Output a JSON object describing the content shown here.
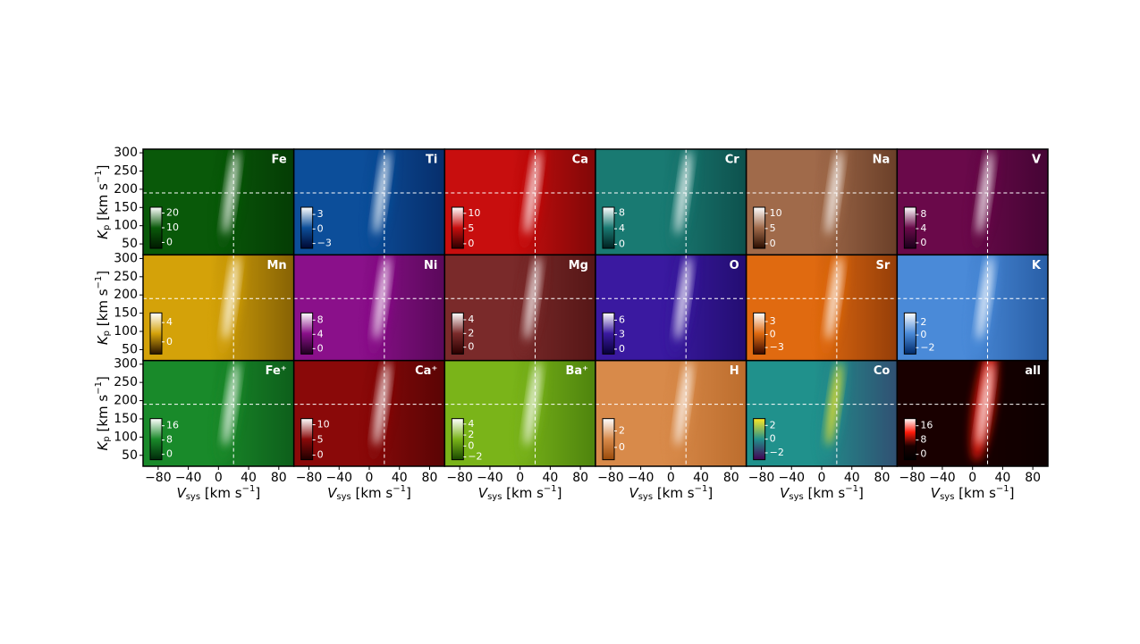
{
  "chart_data": {
    "type": "heatmap_grid",
    "xlim": [
      -100,
      100
    ],
    "ylim": [
      20,
      310
    ],
    "xticks": [
      {
        "value": -80,
        "label": "−80"
      },
      {
        "value": -40,
        "label": "−40"
      },
      0,
      40,
      80
    ],
    "yticks": [
      50,
      100,
      150,
      200,
      250,
      300
    ],
    "xlabel": [
      "V",
      "sys",
      " [km s",
      "−1",
      "]"
    ],
    "ylabel": [
      "K",
      "p",
      " [km s",
      "−1",
      "]"
    ],
    "reference_lines": {
      "x": 20,
      "y": 190
    },
    "panels": [
      {
        "name": "Fe",
        "colors": [
          "#001a00",
          "#0a5a0a",
          "#ffffff"
        ],
        "clim": [
          -4,
          24
        ],
        "cticks": [
          0,
          10,
          20
        ]
      },
      {
        "name": "Ti",
        "colors": [
          "#000833",
          "#0d4f9a",
          "#ffffff"
        ],
        "clim": [
          -4,
          4.5
        ],
        "cticks": [
          {
            "value": -3,
            "label": "−3"
          },
          0,
          3
        ]
      },
      {
        "name": "Ca",
        "colors": [
          "#2a0000",
          "#c80e0e",
          "#ffffff"
        ],
        "clim": [
          -1.5,
          12
        ],
        "cticks": [
          0,
          5,
          10
        ]
      },
      {
        "name": "Cr",
        "colors": [
          "#002020",
          "#1a7a72",
          "#ffffff"
        ],
        "clim": [
          -1,
          9.5
        ],
        "cticks": [
          0,
          4,
          8
        ]
      },
      {
        "name": "Na",
        "colors": [
          "#2a0d00",
          "#a06a4a",
          "#ffffff"
        ],
        "clim": [
          -1.5,
          12
        ],
        "cticks": [
          0,
          5,
          10
        ]
      },
      {
        "name": "V",
        "colors": [
          "#1a001a",
          "#6a0a4a",
          "#ffffff"
        ],
        "clim": [
          -1.5,
          10
        ],
        "cticks": [
          0,
          4,
          8
        ]
      },
      {
        "name": "Mn",
        "colors": [
          "#2a1500",
          "#d4a20a",
          "#ffffff"
        ],
        "clim": [
          -2.5,
          6
        ],
        "cticks": [
          0,
          4
        ]
      },
      {
        "name": "Ni",
        "colors": [
          "#200020",
          "#8a108a",
          "#ffffff"
        ],
        "clim": [
          -1.5,
          10
        ],
        "cticks": [
          0,
          4,
          8
        ]
      },
      {
        "name": "Mg",
        "colors": [
          "#2a0000",
          "#7a2a2a",
          "#ffffff"
        ],
        "clim": [
          -1,
          5
        ],
        "cticks": [
          0,
          2,
          4
        ]
      },
      {
        "name": "O",
        "colors": [
          "#08003a",
          "#3a1aa0",
          "#ffffff"
        ],
        "clim": [
          -1,
          7.5
        ],
        "cticks": [
          0,
          3,
          6
        ]
      },
      {
        "name": "Sr",
        "colors": [
          "#3a0a00",
          "#e06a10",
          "#ffffff"
        ],
        "clim": [
          -4.5,
          5
        ],
        "cticks": [
          {
            "value": -3,
            "label": "−3"
          },
          0,
          3
        ]
      },
      {
        "name": "K",
        "colors": [
          "#002a6a",
          "#4a8ad8",
          "#ffffff"
        ],
        "clim": [
          -3,
          3.5
        ],
        "cticks": [
          {
            "value": -2,
            "label": "−2"
          },
          0,
          2
        ]
      },
      {
        "name": "Fe⁺",
        "colors": [
          "#002a0a",
          "#1a8a2a",
          "#ffffff"
        ],
        "clim": [
          -3,
          20
        ],
        "cticks": [
          0,
          8,
          16
        ]
      },
      {
        "name": "Ca⁺",
        "colors": [
          "#200000",
          "#8a0a0a",
          "#ffffff"
        ],
        "clim": [
          -1.5,
          12
        ],
        "cticks": [
          0,
          5,
          10
        ]
      },
      {
        "name": "Ba⁺",
        "colors": [
          "#1a4a00",
          "#7ab41a",
          "#ffffff"
        ],
        "clim": [
          -2.5,
          5
        ],
        "cticks": [
          {
            "value": -2,
            "label": "−2"
          },
          0,
          2,
          4
        ]
      },
      {
        "name": "H",
        "colors": [
          "#9a4a0a",
          "#d88a4a",
          "#ffffff"
        ],
        "clim": [
          -1.5,
          3.5
        ],
        "cticks": [
          0,
          2
        ]
      },
      {
        "name": "Co",
        "colors": [
          "#440154",
          "#21918c",
          "#fde725"
        ],
        "clim": [
          -3,
          3
        ],
        "cticks": [
          {
            "value": -2,
            "label": "−2"
          },
          0,
          2
        ]
      },
      {
        "name": "all",
        "colors": [
          "#000000",
          "#1a0000",
          "#ff1a0a",
          "#ffffff"
        ],
        "clim": [
          -3,
          20
        ],
        "cticks": [
          0,
          8,
          16
        ]
      }
    ]
  }
}
